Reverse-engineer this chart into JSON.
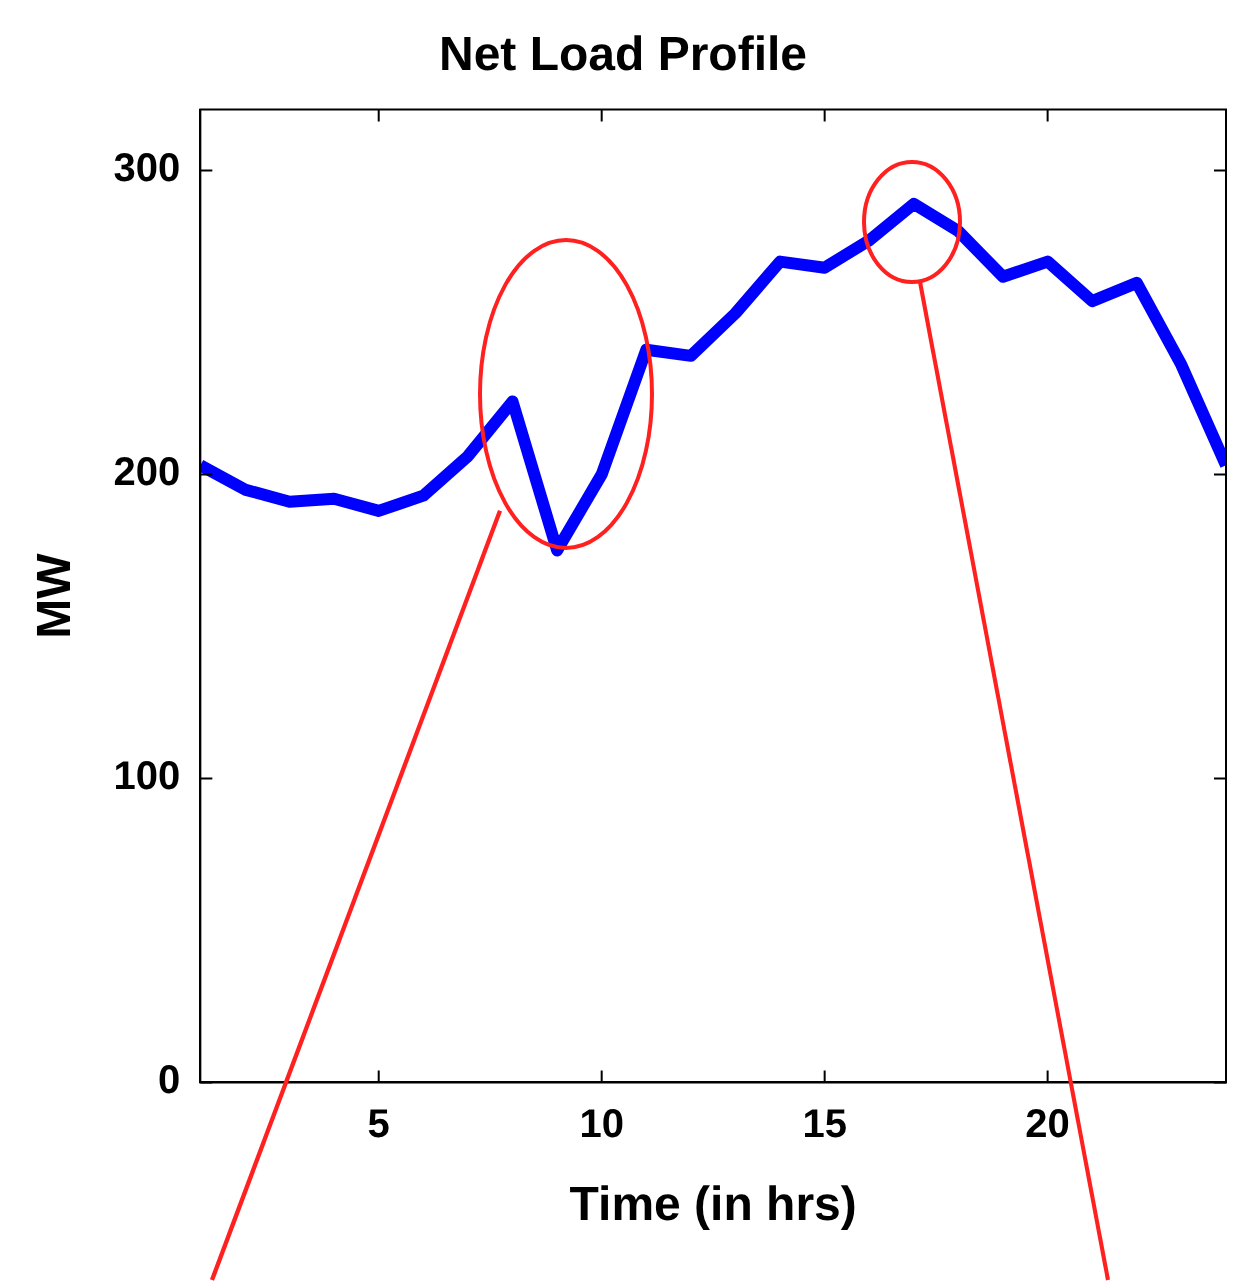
{
  "chart_data": {
    "type": "line",
    "title": "Net Load Profile",
    "xlabel": "Time (in hrs)",
    "ylabel": "MW",
    "x": [
      1,
      2,
      3,
      4,
      5,
      6,
      7,
      8,
      9,
      10,
      11,
      12,
      13,
      14,
      15,
      16,
      17,
      18,
      19,
      20,
      21,
      22,
      23,
      24
    ],
    "series": [
      {
        "color": "#0000ff",
        "values": [
          203,
          195,
          191,
          192,
          188,
          193,
          206,
          224,
          175,
          200,
          241,
          239,
          253,
          270,
          268,
          277,
          289,
          280,
          265,
          270,
          257,
          263,
          236,
          203
        ]
      }
    ],
    "xlim": [
      1,
      24
    ],
    "xticks": [
      5,
      10,
      15,
      20
    ],
    "ylim": [
      0,
      320
    ],
    "yticks": [
      0,
      100,
      200,
      300
    ],
    "grid": false,
    "legend": false,
    "marker": "none",
    "line_style": "solid"
  }
}
